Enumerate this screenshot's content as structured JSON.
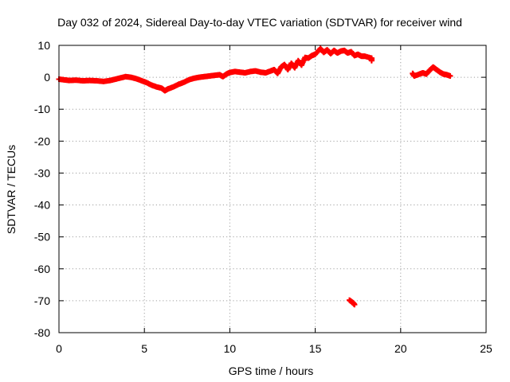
{
  "chart_data": {
    "type": "scatter",
    "title": "Day 032 of 2024, Sidereal Day-to-day VTEC variation (SDTVAR) for receiver wind",
    "xlabel": "GPS time / hours",
    "ylabel": "SDTVAR / TECUs",
    "xlim": [
      0,
      25
    ],
    "ylim": [
      -80,
      10
    ],
    "xticks": [
      0,
      5,
      10,
      15,
      20,
      25
    ],
    "yticks": [
      10,
      0,
      -10,
      -20,
      -30,
      -40,
      -50,
      -60,
      -70,
      -80
    ],
    "grid": true,
    "marker": "+",
    "series": [
      {
        "name": "SDTVAR",
        "color": "#ff0000",
        "points": [
          [
            0.0,
            -0.6
          ],
          [
            0.3,
            -0.8
          ],
          [
            0.6,
            -1.0
          ],
          [
            1.0,
            -0.9
          ],
          [
            1.4,
            -1.1
          ],
          [
            1.8,
            -1.0
          ],
          [
            2.2,
            -1.1
          ],
          [
            2.6,
            -1.3
          ],
          [
            3.0,
            -1.0
          ],
          [
            3.3,
            -0.6
          ],
          [
            3.6,
            -0.2
          ],
          [
            3.9,
            0.2
          ],
          [
            4.2,
            0.0
          ],
          [
            4.5,
            -0.4
          ],
          [
            4.8,
            -1.0
          ],
          [
            5.1,
            -1.6
          ],
          [
            5.4,
            -2.4
          ],
          [
            5.7,
            -3.0
          ],
          [
            6.0,
            -3.4
          ],
          [
            6.2,
            -4.2
          ],
          [
            6.4,
            -3.6
          ],
          [
            6.7,
            -3.0
          ],
          [
            7.0,
            -2.2
          ],
          [
            7.3,
            -1.6
          ],
          [
            7.6,
            -0.8
          ],
          [
            7.9,
            -0.3
          ],
          [
            8.2,
            0.0
          ],
          [
            8.5,
            0.2
          ],
          [
            8.8,
            0.4
          ],
          [
            9.1,
            0.6
          ],
          [
            9.4,
            0.8
          ],
          [
            9.6,
            0.2
          ],
          [
            9.8,
            1.0
          ],
          [
            10.0,
            1.5
          ],
          [
            10.3,
            1.8
          ],
          [
            10.6,
            1.6
          ],
          [
            10.9,
            1.4
          ],
          [
            11.2,
            1.8
          ],
          [
            11.5,
            2.0
          ],
          [
            11.8,
            1.6
          ],
          [
            12.1,
            1.4
          ],
          [
            12.4,
            2.0
          ],
          [
            12.6,
            2.4
          ],
          [
            12.8,
            1.2
          ],
          [
            13.0,
            3.2
          ],
          [
            13.2,
            4.0
          ],
          [
            13.4,
            2.4
          ],
          [
            13.6,
            4.4
          ],
          [
            13.8,
            3.0
          ],
          [
            14.0,
            5.2
          ],
          [
            14.2,
            3.8
          ],
          [
            14.4,
            6.2
          ],
          [
            14.6,
            6.0
          ],
          [
            14.8,
            6.8
          ],
          [
            15.0,
            7.2
          ],
          [
            15.3,
            9.0
          ],
          [
            15.5,
            7.8
          ],
          [
            15.7,
            8.6
          ],
          [
            15.9,
            7.4
          ],
          [
            16.1,
            8.4
          ],
          [
            16.3,
            7.6
          ],
          [
            16.5,
            8.2
          ],
          [
            16.7,
            8.4
          ],
          [
            16.9,
            7.6
          ],
          [
            17.1,
            8.0
          ],
          [
            17.3,
            6.8
          ],
          [
            17.5,
            7.2
          ],
          [
            17.7,
            6.6
          ],
          [
            17.9,
            6.6
          ],
          [
            18.3,
            6.0
          ],
          [
            18.3,
            5.2
          ],
          [
            17.0,
            -69.8
          ],
          [
            17.2,
            -70.6
          ],
          [
            17.3,
            -71.2
          ],
          [
            20.7,
            1.2
          ],
          [
            20.8,
            0.4
          ],
          [
            21.1,
            1.0
          ],
          [
            21.3,
            1.4
          ],
          [
            21.5,
            1.0
          ],
          [
            21.7,
            2.2
          ],
          [
            21.9,
            3.2
          ],
          [
            22.1,
            2.4
          ],
          [
            22.3,
            1.6
          ],
          [
            22.5,
            1.0
          ],
          [
            22.7,
            0.8
          ],
          [
            22.9,
            0.4
          ]
        ]
      }
    ]
  }
}
